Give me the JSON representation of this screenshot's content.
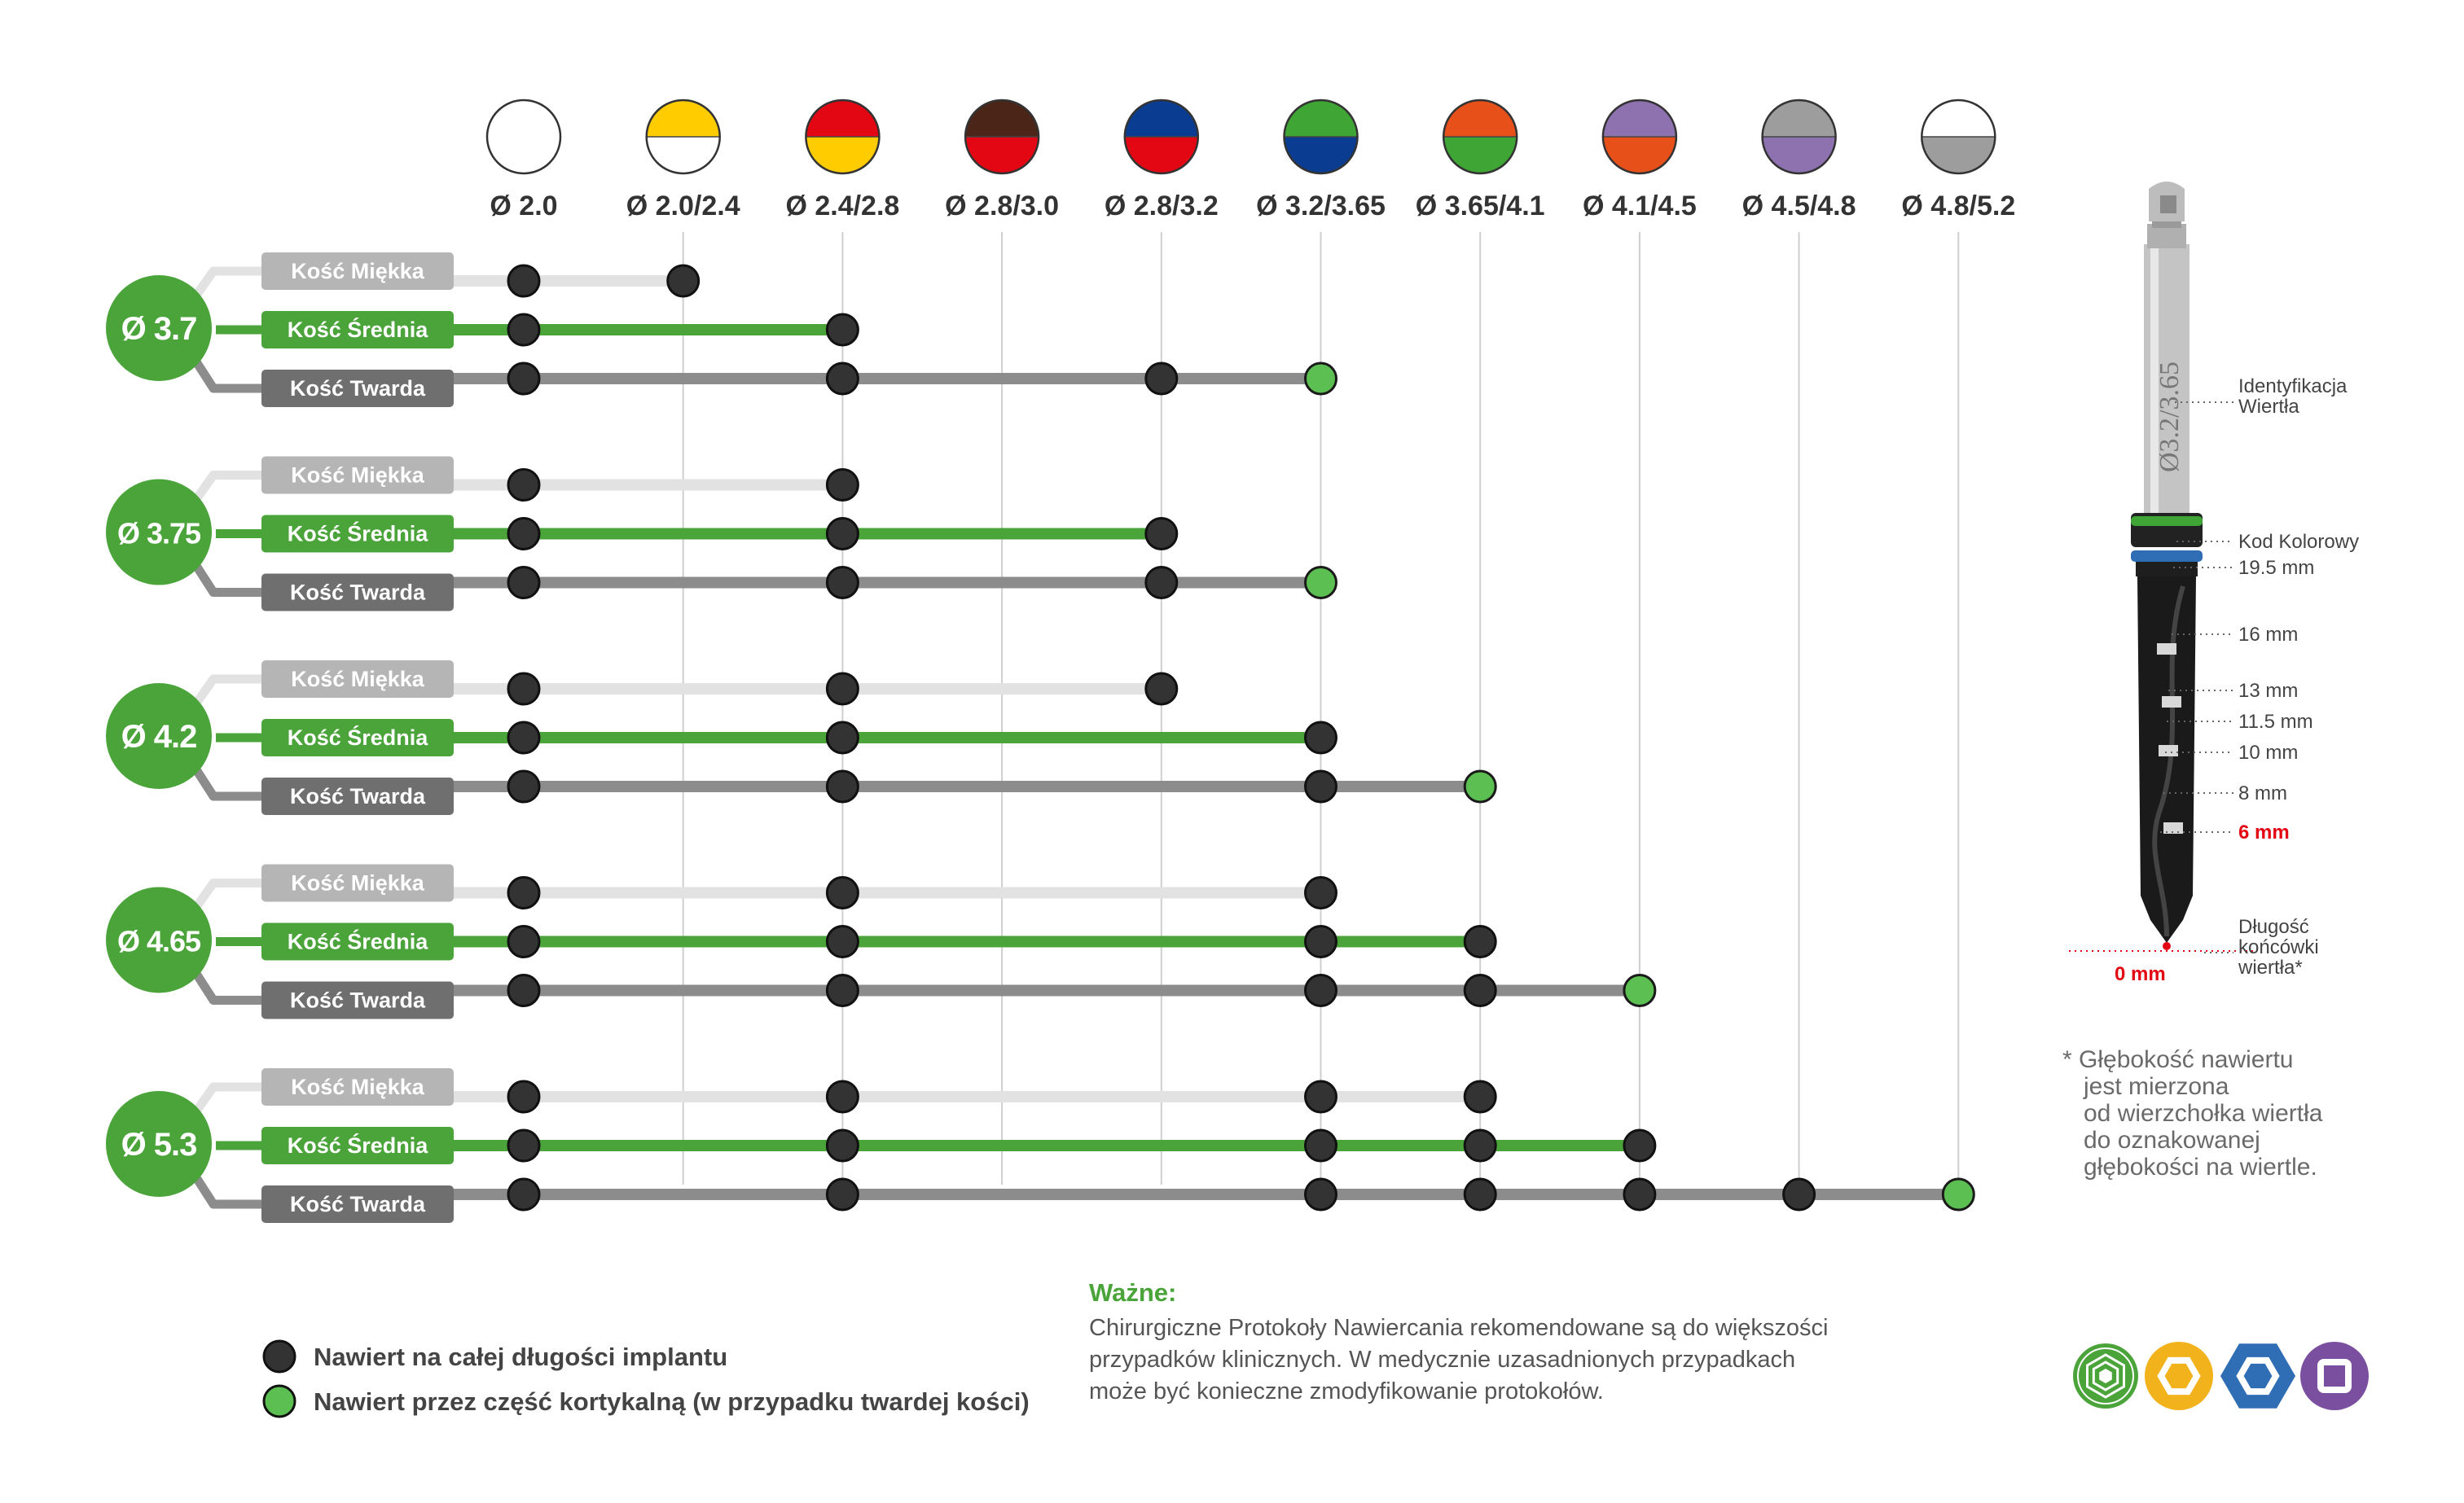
{
  "drills": [
    {
      "label": "Ø 2.0",
      "top": "#ffffff",
      "bottom": "#ffffff"
    },
    {
      "label": "Ø 2.0/2.4",
      "top": "#ffcc00",
      "bottom": "#ffffff"
    },
    {
      "label": "Ø 2.4/2.8",
      "top": "#e30613",
      "bottom": "#ffcc00"
    },
    {
      "label": "Ø 2.8/3.0",
      "top": "#4a2518",
      "bottom": "#e30613"
    },
    {
      "label": "Ø 2.8/3.2",
      "top": "#0a3d91",
      "bottom": "#e30613"
    },
    {
      "label": "Ø 3.2/3.65",
      "top": "#3fa535",
      "bottom": "#0a3d91"
    },
    {
      "label": "Ø 3.65/4.1",
      "top": "#e8501a",
      "bottom": "#3fa535"
    },
    {
      "label": "Ø 4.1/4.5",
      "top": "#8e72b0",
      "bottom": "#e8501a"
    },
    {
      "label": "Ø 4.5/4.8",
      "top": "#9d9d9d",
      "bottom": "#8e72b0"
    },
    {
      "label": "Ø 4.8/5.2",
      "top": "#ffffff",
      "bottom": "#9d9d9d"
    }
  ],
  "bone_labels": {
    "soft": "Kość Miękka",
    "medium": "Kość Średnia",
    "hard": "Kość Twarda"
  },
  "colors": {
    "green": "#4aa43a",
    "soft_line": "#e2e2e2",
    "medium_line": "#4aa43a",
    "hard_line": "#8c8c8c",
    "dot_dark": "#333333",
    "dot_green": "#5cbf52",
    "soft_tag": "#b5b5b5",
    "hard_tag": "#6f6f6f",
    "red": "#e30613"
  },
  "implants": [
    {
      "label": "Ø 3.7",
      "soft": {
        "steps": [
          0,
          1
        ]
      },
      "medium": {
        "steps": [
          0,
          2
        ]
      },
      "hard": {
        "steps": [
          0,
          2,
          4
        ],
        "cortical": 5
      }
    },
    {
      "label": "Ø 3.75",
      "soft": {
        "steps": [
          0,
          2
        ]
      },
      "medium": {
        "steps": [
          0,
          2,
          4
        ]
      },
      "hard": {
        "steps": [
          0,
          2,
          4
        ],
        "cortical": 5
      }
    },
    {
      "label": "Ø 4.2",
      "soft": {
        "steps": [
          0,
          2,
          4
        ]
      },
      "medium": {
        "steps": [
          0,
          2,
          5
        ]
      },
      "hard": {
        "steps": [
          0,
          2,
          5
        ],
        "cortical": 6
      }
    },
    {
      "label": "Ø 4.65",
      "soft": {
        "steps": [
          0,
          2,
          5
        ]
      },
      "medium": {
        "steps": [
          0,
          2,
          5,
          6
        ]
      },
      "hard": {
        "steps": [
          0,
          2,
          5,
          6
        ],
        "cortical": 7
      }
    },
    {
      "label": "Ø 5.3",
      "soft": {
        "steps": [
          0,
          2,
          5,
          6
        ]
      },
      "medium": {
        "steps": [
          0,
          2,
          5,
          6,
          7
        ]
      },
      "hard": {
        "steps": [
          0,
          2,
          5,
          6,
          7,
          8
        ],
        "cortical": 9
      }
    }
  ],
  "legend": [
    {
      "text": "Nawiert na całej długości implantu",
      "kind": "dark"
    },
    {
      "text": "Nawiert przez część kortykalną (w przypadku twardej kości)",
      "kind": "green"
    }
  ],
  "note": {
    "title": "Ważne:",
    "lines": [
      "Chirurgiczne Protokoły Nawiercania rekomendowane są do większości",
      "przypadków klinicznych. W medycznie uzasadnionych przypadkach",
      "może być konieczne zmodyfikowanie protokołów."
    ]
  },
  "drill_figure": {
    "engraving": "Ø3.2/3.65",
    "labels": [
      {
        "text": "Identyfikacja\nWiertła",
        "row": 0
      },
      {
        "text": "Kod Kolorowy",
        "row": 1
      },
      {
        "text": "19.5 mm",
        "row": 2
      },
      {
        "text": "16 mm",
        "row": 3
      },
      {
        "text": "13 mm",
        "row": 4
      },
      {
        "text": "11.5 mm",
        "row": 5
      },
      {
        "text": "10 mm",
        "row": 6
      },
      {
        "text": "8 mm",
        "row": 7
      },
      {
        "text": "6 mm",
        "row": 8,
        "color": "#e30613"
      },
      {
        "text": "0 mm",
        "row": 9,
        "color": "#e30613"
      },
      {
        "text": "Długość\nkońcówki\nwiertła*",
        "row": 10
      }
    ]
  },
  "footnote": {
    "lines": [
      "* Głębokość nawiertu",
      "jest mierzona",
      "od wierzchołka wiertła",
      "do oznakowanej",
      "głębokości na wiertle."
    ]
  },
  "connection_icons": [
    {
      "name": "hexagon-connection-icon",
      "color": "#4aa43a"
    },
    {
      "name": "hex-yellow-connection-icon",
      "color": "#f2b21b"
    },
    {
      "name": "hex-blue-connection-icon",
      "color": "#2f6db5"
    },
    {
      "name": "square-purple-connection-icon",
      "color": "#7a4fa0"
    }
  ]
}
